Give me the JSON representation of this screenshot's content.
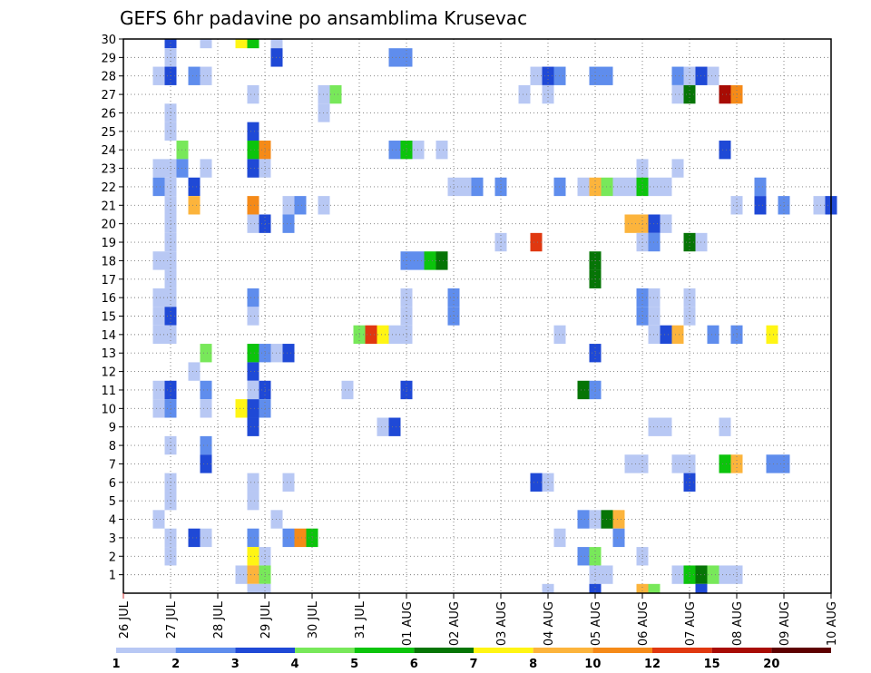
{
  "chart_data": {
    "type": "heatmap",
    "title": "GEFS 6hr padavine po ansamblima Krusevac",
    "xlabel": "",
    "ylabel": "",
    "x_tick_labels": [
      "26 JUL",
      "27 JUL",
      "28 JUL",
      "29 JUL",
      "30 JUL",
      "31 JUL",
      "01 AUG",
      "02 AUG",
      "03 AUG",
      "04 AUG",
      "05 AUG",
      "06 AUG",
      "07 AUG",
      "08 AUG",
      "09 AUG",
      "10 AUG"
    ],
    "x_steps_per_day": 4,
    "x_range_steps": [
      0,
      60
    ],
    "y_range": [
      0,
      30
    ],
    "y_ticks": [
      1,
      2,
      3,
      4,
      5,
      6,
      7,
      8,
      9,
      10,
      11,
      12,
      13,
      14,
      15,
      16,
      17,
      18,
      19,
      20,
      21,
      22,
      23,
      24,
      25,
      26,
      27,
      28,
      29,
      30
    ],
    "grid": true,
    "colorbar": {
      "position": "bottom",
      "thresholds": [
        1,
        2,
        3,
        4,
        5,
        6,
        7,
        8,
        10,
        12,
        15,
        20
      ],
      "colors": [
        "#b8c8f4",
        "#5f8ded",
        "#1f49d6",
        "#78e85a",
        "#0cc40c",
        "#067506",
        "#fff514",
        "#fcb43c",
        "#f58a18",
        "#e03810",
        "#a80c04",
        "#5e0000"
      ]
    },
    "cell_encoding": "[step_index, ensemble_member, color_class]  step_index = 6h intervals from 26 JUL 00Z; color_class indexes colorbar.colors",
    "cells": [
      [
        4,
        30,
        2
      ],
      [
        7,
        30,
        0
      ],
      [
        10,
        30,
        6
      ],
      [
        11,
        30,
        4
      ],
      [
        13,
        30,
        0
      ],
      [
        4,
        29,
        0
      ],
      [
        13,
        29,
        2
      ],
      [
        23,
        29,
        1
      ],
      [
        24,
        29,
        1
      ],
      [
        3,
        28,
        0
      ],
      [
        4,
        28,
        2
      ],
      [
        6,
        28,
        1
      ],
      [
        7,
        28,
        0
      ],
      [
        35,
        28,
        0
      ],
      [
        36,
        28,
        2
      ],
      [
        37,
        28,
        1
      ],
      [
        40,
        28,
        1
      ],
      [
        41,
        28,
        1
      ],
      [
        47,
        28,
        1
      ],
      [
        48,
        28,
        0
      ],
      [
        49,
        28,
        2
      ],
      [
        50,
        28,
        0
      ],
      [
        11,
        27,
        0
      ],
      [
        17,
        27,
        0
      ],
      [
        18,
        27,
        3
      ],
      [
        34,
        27,
        0
      ],
      [
        36,
        27,
        0
      ],
      [
        47,
        27,
        0
      ],
      [
        48,
        27,
        5
      ],
      [
        51,
        27,
        10
      ],
      [
        52,
        27,
        8
      ],
      [
        4,
        26,
        0
      ],
      [
        17,
        26,
        0
      ],
      [
        4,
        25,
        0
      ],
      [
        11,
        25,
        2
      ],
      [
        5,
        24,
        3
      ],
      [
        11,
        24,
        4
      ],
      [
        12,
        24,
        8
      ],
      [
        23,
        24,
        1
      ],
      [
        24,
        24,
        4
      ],
      [
        25,
        24,
        0
      ],
      [
        27,
        24,
        0
      ],
      [
        51,
        24,
        2
      ],
      [
        5,
        23,
        1
      ],
      [
        11,
        23,
        2
      ],
      [
        12,
        23,
        0
      ],
      [
        4,
        23,
        0
      ],
      [
        3,
        23,
        0
      ],
      [
        7,
        23,
        0
      ],
      [
        44,
        23,
        0
      ],
      [
        47,
        23,
        0
      ],
      [
        3,
        22,
        1
      ],
      [
        4,
        22,
        0
      ],
      [
        6,
        22,
        2
      ],
      [
        28,
        22,
        0
      ],
      [
        29,
        22,
        0
      ],
      [
        30,
        22,
        1
      ],
      [
        32,
        22,
        1
      ],
      [
        37,
        22,
        1
      ],
      [
        39,
        22,
        0
      ],
      [
        40,
        22,
        7
      ],
      [
        41,
        22,
        3
      ],
      [
        42,
        22,
        0
      ],
      [
        43,
        22,
        0
      ],
      [
        44,
        22,
        4
      ],
      [
        45,
        22,
        0
      ],
      [
        46,
        22,
        0
      ],
      [
        54,
        22,
        1
      ],
      [
        4,
        21,
        0
      ],
      [
        6,
        21,
        7
      ],
      [
        11,
        21,
        8
      ],
      [
        14,
        21,
        0
      ],
      [
        15,
        21,
        1
      ],
      [
        17,
        21,
        0
      ],
      [
        52,
        21,
        0
      ],
      [
        54,
        21,
        2
      ],
      [
        56,
        21,
        1
      ],
      [
        59,
        21,
        0
      ],
      [
        60,
        21,
        2
      ],
      [
        4,
        20,
        0
      ],
      [
        11,
        20,
        0
      ],
      [
        12,
        20,
        2
      ],
      [
        14,
        20,
        1
      ],
      [
        43,
        20,
        7
      ],
      [
        44,
        20,
        7
      ],
      [
        45,
        20,
        2
      ],
      [
        46,
        20,
        0
      ],
      [
        4,
        19,
        0
      ],
      [
        32,
        19,
        0
      ],
      [
        35,
        19,
        9
      ],
      [
        44,
        19,
        0
      ],
      [
        45,
        19,
        1
      ],
      [
        48,
        19,
        5
      ],
      [
        49,
        19,
        0
      ],
      [
        3,
        18,
        0
      ],
      [
        4,
        18,
        0
      ],
      [
        24,
        18,
        1
      ],
      [
        25,
        18,
        1
      ],
      [
        26,
        18,
        4
      ],
      [
        27,
        18,
        5
      ],
      [
        40,
        18,
        5
      ],
      [
        4,
        17,
        0
      ],
      [
        40,
        17,
        5
      ],
      [
        3,
        16,
        0
      ],
      [
        4,
        16,
        0
      ],
      [
        11,
        16,
        1
      ],
      [
        24,
        16,
        0
      ],
      [
        28,
        16,
        1
      ],
      [
        44,
        16,
        1
      ],
      [
        45,
        16,
        0
      ],
      [
        48,
        16,
        0
      ],
      [
        3,
        15,
        0
      ],
      [
        4,
        15,
        2
      ],
      [
        11,
        15,
        0
      ],
      [
        24,
        15,
        0
      ],
      [
        28,
        15,
        1
      ],
      [
        44,
        15,
        1
      ],
      [
        45,
        15,
        0
      ],
      [
        48,
        15,
        0
      ],
      [
        3,
        14,
        0
      ],
      [
        4,
        14,
        0
      ],
      [
        20,
        14,
        3
      ],
      [
        21,
        14,
        9
      ],
      [
        22,
        14,
        6
      ],
      [
        23,
        14,
        0
      ],
      [
        24,
        14,
        0
      ],
      [
        37,
        14,
        0
      ],
      [
        45,
        14,
        0
      ],
      [
        46,
        14,
        2
      ],
      [
        47,
        14,
        7
      ],
      [
        50,
        14,
        1
      ],
      [
        52,
        14,
        1
      ],
      [
        55,
        14,
        6
      ],
      [
        7,
        13,
        3
      ],
      [
        11,
        13,
        4
      ],
      [
        12,
        13,
        1
      ],
      [
        13,
        13,
        0
      ],
      [
        14,
        13,
        2
      ],
      [
        40,
        13,
        2
      ],
      [
        6,
        12,
        0
      ],
      [
        11,
        12,
        2
      ],
      [
        3,
        11,
        0
      ],
      [
        4,
        11,
        2
      ],
      [
        7,
        11,
        1
      ],
      [
        11,
        11,
        0
      ],
      [
        12,
        11,
        2
      ],
      [
        19,
        11,
        0
      ],
      [
        24,
        11,
        2
      ],
      [
        39,
        11,
        5
      ],
      [
        40,
        11,
        1
      ],
      [
        3,
        10,
        0
      ],
      [
        4,
        10,
        1
      ],
      [
        7,
        10,
        0
      ],
      [
        10,
        10,
        6
      ],
      [
        11,
        10,
        2
      ],
      [
        12,
        10,
        1
      ],
      [
        11,
        9,
        2
      ],
      [
        22,
        9,
        0
      ],
      [
        23,
        9,
        2
      ],
      [
        45,
        9,
        0
      ],
      [
        46,
        9,
        0
      ],
      [
        51,
        9,
        0
      ],
      [
        4,
        8,
        0
      ],
      [
        7,
        8,
        1
      ],
      [
        7,
        7,
        2
      ],
      [
        43,
        7,
        0
      ],
      [
        44,
        7,
        0
      ],
      [
        47,
        7,
        0
      ],
      [
        48,
        7,
        0
      ],
      [
        51,
        7,
        4
      ],
      [
        52,
        7,
        7
      ],
      [
        55,
        7,
        1
      ],
      [
        56,
        7,
        1
      ],
      [
        4,
        6,
        0
      ],
      [
        11,
        6,
        0
      ],
      [
        14,
        6,
        0
      ],
      [
        35,
        6,
        2
      ],
      [
        36,
        6,
        0
      ],
      [
        48,
        6,
        2
      ],
      [
        4,
        5,
        0
      ],
      [
        11,
        5,
        0
      ],
      [
        3,
        4,
        0
      ],
      [
        13,
        4,
        0
      ],
      [
        39,
        4,
        1
      ],
      [
        40,
        4,
        0
      ],
      [
        41,
        4,
        5
      ],
      [
        42,
        4,
        7
      ],
      [
        4,
        3,
        0
      ],
      [
        6,
        3,
        2
      ],
      [
        7,
        3,
        0
      ],
      [
        11,
        3,
        1
      ],
      [
        14,
        3,
        1
      ],
      [
        15,
        3,
        8
      ],
      [
        16,
        3,
        4
      ],
      [
        37,
        3,
        0
      ],
      [
        42,
        3,
        1
      ],
      [
        4,
        2,
        0
      ],
      [
        11,
        2,
        6
      ],
      [
        12,
        2,
        0
      ],
      [
        39,
        2,
        1
      ],
      [
        40,
        2,
        3
      ],
      [
        44,
        2,
        0
      ],
      [
        10,
        1,
        0
      ],
      [
        11,
        1,
        7
      ],
      [
        12,
        1,
        3
      ],
      [
        40,
        1,
        0
      ],
      [
        41,
        1,
        0
      ],
      [
        47,
        1,
        0
      ],
      [
        48,
        1,
        4
      ],
      [
        49,
        1,
        5
      ],
      [
        50,
        1,
        3
      ],
      [
        51,
        1,
        0
      ],
      [
        52,
        1,
        0
      ],
      [
        11,
        0,
        0
      ],
      [
        12,
        0,
        0
      ],
      [
        36,
        0,
        0
      ],
      [
        40,
        0,
        2
      ],
      [
        44,
        0,
        7
      ],
      [
        45,
        0,
        3
      ],
      [
        49,
        0,
        2
      ]
    ]
  }
}
